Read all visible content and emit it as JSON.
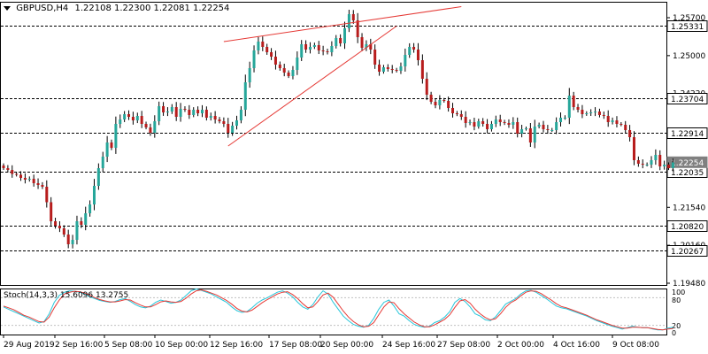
{
  "header": {
    "symbol": "GBPUSD,H4",
    "ohlc": "1.22108 1.22300 1.22081 1.22254"
  },
  "stoch_header": {
    "label": "Stoch(14,3,3) 15.6096 13.2755"
  },
  "colors": {
    "bull": "#26a69a",
    "bear": "#b71c1c",
    "wick": "#000000",
    "trend": "#e53935",
    "main_line": "#26c6da",
    "signal_line": "#e53935",
    "grid": "#c0c0c0"
  },
  "chart_data": [
    {
      "type": "candlestick",
      "title": "GBPUSD,H4",
      "ylim": [
        1.1948,
        1.2588
      ],
      "y_ticks": [
        "1.25700",
        "1.25000",
        "1.24220",
        "1.23520",
        "1.22790",
        "1.21540",
        "1.20160",
        "1.19480"
      ],
      "x_ticks": [
        "29 Aug 2019",
        "2 Sep 16:00",
        "5 Sep 08:00",
        "10 Sep 00:00",
        "12 Sep 16:00",
        "17 Sep 08:00",
        "20 Sep 00:00",
        "24 Sep 16:00",
        "27 Sep 08:00",
        "2 Oct 00:00",
        "4 Oct 16:00",
        "9 Oct 08:00"
      ],
      "levels": [
        {
          "value": 1.25331,
          "label": "1.25331"
        },
        {
          "value": 1.23704,
          "label": "1.23704"
        },
        {
          "value": 1.22914,
          "label": "1.22914"
        },
        {
          "value": 1.22035,
          "label": "1.22035"
        },
        {
          "value": 1.2082,
          "label": "1.20820"
        },
        {
          "value": 1.20267,
          "label": "1.20267"
        }
      ],
      "current_price": {
        "value": 1.22254,
        "label": "1.22254"
      },
      "trendlines": [
        {
          "from": [
            51,
            1.2498
          ],
          "to": [
            106,
            1.2577
          ]
        },
        {
          "from": [
            52,
            1.2262
          ],
          "to": [
            91,
            1.2533
          ]
        }
      ],
      "closes": [
        1.2212,
        1.2208,
        1.2199,
        1.2197,
        1.219,
        1.2186,
        1.2188,
        1.2178,
        1.2174,
        1.217,
        1.2135,
        1.2092,
        1.2082,
        1.2076,
        1.2062,
        1.204,
        1.205,
        1.2092,
        1.2084,
        1.211,
        1.213,
        1.2172,
        1.2212,
        1.2238,
        1.227,
        1.2258,
        1.2312,
        1.2322,
        1.2334,
        1.2328,
        1.232,
        1.233,
        1.2312,
        1.2304,
        1.2292,
        1.2318,
        1.2352,
        1.2338,
        1.234,
        1.235,
        1.2328,
        1.2346,
        1.2344,
        1.2332,
        1.2344,
        1.2336,
        1.2344,
        1.2326,
        1.233,
        1.2322,
        1.2318,
        1.2312,
        1.2292,
        1.2308,
        1.232,
        1.2344,
        1.2406,
        1.2438,
        1.2478,
        1.2498,
        1.2486,
        1.2474,
        1.2464,
        1.2446,
        1.2438,
        1.2428,
        1.242,
        1.2434,
        1.2462,
        1.2492,
        1.248,
        1.2486,
        1.249,
        1.2478,
        1.2476,
        1.2474,
        1.2488,
        1.2506,
        1.2494,
        1.2528,
        1.256,
        1.2546,
        1.2508,
        1.2484,
        1.2492,
        1.248,
        1.2446,
        1.243,
        1.244,
        1.2436,
        1.2434,
        1.2432,
        1.2442,
        1.2468,
        1.2486,
        1.248,
        1.2456,
        1.2414,
        1.2378,
        1.2362,
        1.2354,
        1.2366,
        1.2364,
        1.2348,
        1.2336,
        1.2334,
        1.2328,
        1.2314,
        1.2316,
        1.2306,
        1.2318,
        1.2312,
        1.23,
        1.2312,
        1.2322,
        1.2316,
        1.2314,
        1.231,
        1.2316,
        1.229,
        1.23,
        1.2302,
        1.227,
        1.2306,
        1.231,
        1.23,
        1.2298,
        1.2298,
        1.2316,
        1.2326,
        1.2326,
        1.2376,
        1.235,
        1.2344,
        1.2334,
        1.2336,
        1.2338,
        1.234,
        1.2332,
        1.233,
        1.2316,
        1.232,
        1.2312,
        1.231,
        1.2298,
        1.2282,
        1.223,
        1.2222,
        1.222,
        1.222,
        1.223,
        1.2242,
        1.2216,
        1.222,
        1.2212,
        1.2225
      ]
    },
    {
      "type": "line",
      "title": "Stoch(14,3,3)",
      "ylim": [
        0,
        100
      ],
      "y_ticks": [
        "100",
        "80",
        "20",
        "0"
      ],
      "series": [
        {
          "name": "15.6096",
          "values": [
            60,
            55,
            50,
            45,
            40,
            35,
            30,
            25,
            28,
            45,
            70,
            85,
            92,
            95,
            94,
            92,
            88,
            82,
            78,
            74,
            72,
            70,
            72,
            76,
            78,
            72,
            65,
            60,
            58,
            62,
            70,
            75,
            72,
            68,
            70,
            75,
            85,
            95,
            99,
            96,
            92,
            88,
            82,
            76,
            70,
            60,
            52,
            48,
            50,
            58,
            68,
            75,
            80,
            86,
            92,
            95,
            90,
            82,
            70,
            60,
            55,
            65,
            82,
            95,
            88,
            70,
            55,
            40,
            30,
            22,
            18,
            16,
            20,
            35,
            55,
            70,
            75,
            62,
            45,
            40,
            30,
            22,
            18,
            16,
            18,
            26,
            30,
            38,
            50,
            70,
            78,
            72,
            60,
            45,
            40,
            32,
            30,
            38,
            52,
            66,
            72,
            78,
            88,
            95,
            96,
            92,
            85,
            78,
            70,
            62,
            58,
            56,
            52,
            48,
            44,
            40,
            35,
            30,
            26,
            22,
            18,
            15,
            12,
            15,
            18,
            16,
            15,
            15,
            12,
            10,
            10,
            14,
            16
          ]
        },
        {
          "name": "13.2755",
          "values": [
            62,
            58,
            54,
            48,
            42,
            38,
            33,
            28,
            27,
            38,
            58,
            75,
            88,
            92,
            94,
            93,
            90,
            86,
            80,
            76,
            73,
            71,
            71,
            73,
            76,
            75,
            69,
            64,
            60,
            60,
            65,
            71,
            73,
            71,
            70,
            72,
            79,
            88,
            95,
            97,
            94,
            90,
            86,
            80,
            74,
            66,
            57,
            51,
            49,
            53,
            61,
            69,
            76,
            82,
            88,
            92,
            93,
            87,
            78,
            67,
            58,
            60,
            72,
            86,
            90,
            81,
            66,
            51,
            38,
            28,
            21,
            17,
            18,
            26,
            43,
            60,
            71,
            69,
            56,
            45,
            36,
            27,
            21,
            17,
            17,
            21,
            27,
            33,
            43,
            59,
            73,
            76,
            68,
            55,
            45,
            37,
            32,
            34,
            45,
            59,
            69,
            75,
            84,
            92,
            95,
            94,
            89,
            82,
            75,
            67,
            61,
            58,
            54,
            50,
            46,
            42,
            37,
            32,
            28,
            24,
            20,
            17,
            14,
            14,
            16,
            16,
            15,
            15,
            13,
            11,
            10,
            12,
            13
          ]
        }
      ]
    }
  ]
}
